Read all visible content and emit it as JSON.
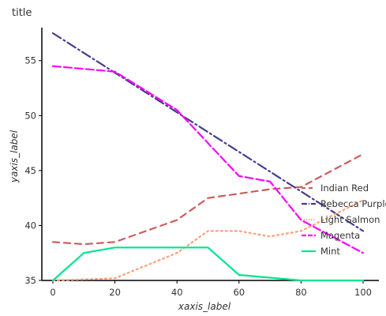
{
  "chart_data": {
    "type": "line",
    "title": "title",
    "xlabel": "xaxis_label",
    "ylabel": "yaxis_label",
    "xlim": [
      0,
      100
    ],
    "ylim": [
      35,
      58
    ],
    "x_ticks": [
      0,
      20,
      40,
      60,
      80,
      100
    ],
    "y_ticks": [
      35,
      40,
      45,
      50,
      55
    ],
    "x_tick_labels": [
      "0",
      "20",
      "40",
      "60",
      "80",
      "100"
    ],
    "y_tick_labels": [
      "35",
      "40",
      "45",
      "50",
      "55"
    ],
    "grid": false,
    "legend_position": "right",
    "series": [
      {
        "name": "Indian Red",
        "color": "#cd5c5c",
        "dash": "8,6",
        "x": [
          0,
          10,
          20,
          40,
          50,
          70,
          80,
          100
        ],
        "y": [
          38.5,
          38.3,
          38.5,
          40.5,
          42.5,
          43.3,
          43.5,
          46.5
        ]
      },
      {
        "name": "Rebecca Purple",
        "color": "#483d8b",
        "dash": "12,4,2,4",
        "x": [
          0,
          100
        ],
        "y": [
          57.5,
          39.5
        ]
      },
      {
        "name": "Light Salmon",
        "color": "#ffa07a",
        "dash": "2,4",
        "x": [
          0,
          20,
          40,
          50,
          60,
          70,
          80,
          100
        ],
        "y": [
          35.0,
          35.2,
          37.5,
          39.5,
          39.5,
          39.0,
          39.5,
          42.3
        ]
      },
      {
        "name": "Magenta",
        "color": "#ff00ff",
        "dash": "10,4",
        "x": [
          0,
          20,
          40,
          50,
          60,
          70,
          80,
          100
        ],
        "y": [
          54.5,
          54.0,
          50.5,
          47.5,
          44.5,
          44.0,
          40.5,
          37.5
        ]
      },
      {
        "name": "Mint",
        "color": "#00e68c",
        "dash": "",
        "x": [
          0,
          10,
          20,
          40,
          50,
          60,
          80,
          100
        ],
        "y": [
          35.0,
          37.5,
          38.0,
          38.0,
          38.0,
          35.5,
          35.0,
          35.0
        ]
      }
    ]
  }
}
